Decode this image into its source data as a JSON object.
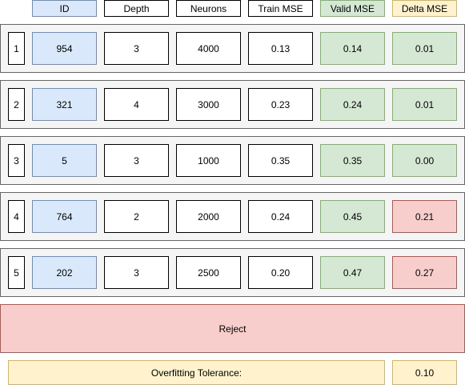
{
  "headers": [
    "ID",
    "Depth",
    "Neurons",
    "Train MSE",
    "Valid MSE",
    "Delta MSE"
  ],
  "rows": [
    {
      "index": "1",
      "id": "954",
      "depth": "3",
      "neurons": "4000",
      "train_mse": "0.13",
      "valid_mse": "0.14",
      "delta_mse": "0.01",
      "delta_status": "ok"
    },
    {
      "index": "2",
      "id": "321",
      "depth": "4",
      "neurons": "3000",
      "train_mse": "0.23",
      "valid_mse": "0.24",
      "delta_mse": "0.01",
      "delta_status": "ok"
    },
    {
      "index": "3",
      "id": "5",
      "depth": "3",
      "neurons": "1000",
      "train_mse": "0.35",
      "valid_mse": "0.35",
      "delta_mse": "0.00",
      "delta_status": "ok"
    },
    {
      "index": "4",
      "id": "764",
      "depth": "2",
      "neurons": "2000",
      "train_mse": "0.24",
      "valid_mse": "0.45",
      "delta_mse": "0.21",
      "delta_status": "reject"
    },
    {
      "index": "5",
      "id": "202",
      "depth": "3",
      "neurons": "2500",
      "train_mse": "0.20",
      "valid_mse": "0.47",
      "delta_mse": "0.27",
      "delta_status": "reject"
    }
  ],
  "reject_label": "Reject",
  "tolerance": {
    "label": "Overfitting Tolerance:",
    "value": "0.10"
  },
  "colors": {
    "id_fill": "#dae8fc",
    "id_stroke": "#6c8ebf",
    "valid_fill": "#d5e8d4",
    "valid_stroke": "#82b366",
    "reject_fill": "#f8cecc",
    "reject_stroke": "#b85450",
    "highlight_fill": "#fff2cc",
    "highlight_stroke": "#d6b656",
    "row_fill": "#f5f5f5",
    "row_stroke": "#666666"
  }
}
